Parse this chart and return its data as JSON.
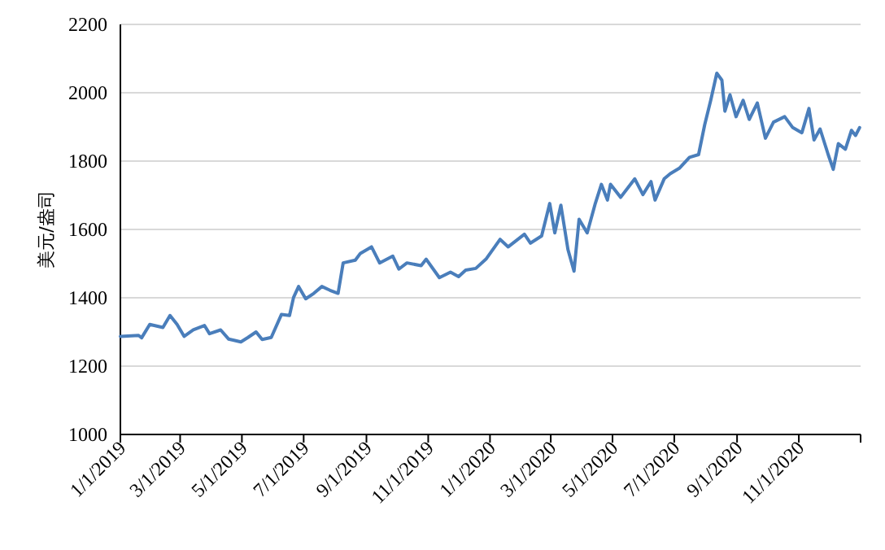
{
  "chart_data": {
    "type": "line",
    "ylabel": "美元/盎司",
    "xlim": [
      "2019-01-01",
      "2021-01-01"
    ],
    "ylim": [
      1000,
      2200
    ],
    "yticks": [
      1000,
      1200,
      1400,
      1600,
      1800,
      2000,
      2200
    ],
    "xticks": [
      {
        "value": "2019-01-01",
        "label": "1/1/2019"
      },
      {
        "value": "2019-03-01",
        "label": "3/1/2019"
      },
      {
        "value": "2019-05-01",
        "label": "5/1/2019"
      },
      {
        "value": "2019-07-01",
        "label": "7/1/2019"
      },
      {
        "value": "2019-09-01",
        "label": "9/1/2019"
      },
      {
        "value": "2019-11-01",
        "label": "11/1/2019"
      },
      {
        "value": "2020-01-01",
        "label": "1/1/2020"
      },
      {
        "value": "2020-03-01",
        "label": "3/1/2020"
      },
      {
        "value": "2020-05-01",
        "label": "5/1/2020"
      },
      {
        "value": "2020-07-01",
        "label": "7/1/2020"
      },
      {
        "value": "2020-09-01",
        "label": "9/1/2020"
      },
      {
        "value": "2020-11-01",
        "label": "11/1/2020"
      },
      {
        "value": "2021-01-01",
        "label": null
      }
    ],
    "grid": "y",
    "marker": "none",
    "line_style": "solid",
    "series": [
      {
        "color": "#4a7ebb",
        "x": [
          "2019-01-01",
          "2019-01-19",
          "2019-01-22",
          "2019-01-30",
          "2019-02-12",
          "2019-02-19",
          "2019-02-26",
          "2019-03-05",
          "2019-03-14",
          "2019-03-25",
          "2019-03-30",
          "2019-04-10",
          "2019-04-18",
          "2019-04-30",
          "2019-05-07",
          "2019-05-15",
          "2019-05-21",
          "2019-05-30",
          "2019-06-09",
          "2019-06-17",
          "2019-06-21",
          "2019-06-26",
          "2019-07-03",
          "2019-07-11",
          "2019-07-19",
          "2019-07-27",
          "2019-08-04",
          "2019-08-09",
          "2019-08-21",
          "2019-08-26",
          "2019-09-06",
          "2019-09-14",
          "2019-09-27",
          "2019-10-03",
          "2019-10-11",
          "2019-10-25",
          "2019-10-30",
          "2019-11-12",
          "2019-11-23",
          "2019-12-01",
          "2019-12-08",
          "2019-12-18",
          "2019-12-28",
          "2020-01-11",
          "2020-01-19",
          "2020-02-04",
          "2020-02-10",
          "2020-02-21",
          "2020-02-29",
          "2020-03-05",
          "2020-03-11",
          "2020-03-18",
          "2020-03-24",
          "2020-03-29",
          "2020-04-06",
          "2020-04-14",
          "2020-04-20",
          "2020-04-26",
          "2020-04-29",
          "2020-05-09",
          "2020-05-23",
          "2020-05-31",
          "2020-06-08",
          "2020-06-12",
          "2020-06-21",
          "2020-06-27",
          "2020-07-06",
          "2020-07-16",
          "2020-07-25",
          "2020-07-31",
          "2020-08-06",
          "2020-08-12",
          "2020-08-17",
          "2020-08-20",
          "2020-08-25",
          "2020-08-31",
          "2020-09-07",
          "2020-09-13",
          "2020-09-21",
          "2020-09-29",
          "2020-10-07",
          "2020-10-18",
          "2020-10-26",
          "2020-11-04",
          "2020-11-11",
          "2020-11-16",
          "2020-11-22",
          "2020-11-30",
          "2020-12-05",
          "2020-12-10",
          "2020-12-17",
          "2020-12-23",
          "2020-12-27",
          "2020-12-31"
        ],
        "values": [
          1287,
          1290,
          1283,
          1322,
          1313,
          1348,
          1322,
          1287,
          1306,
          1319,
          1295,
          1306,
          1279,
          1271,
          1284,
          1300,
          1278,
          1284,
          1351,
          1348,
          1401,
          1433,
          1397,
          1413,
          1433,
          1422,
          1413,
          1502,
          1510,
          1530,
          1549,
          1502,
          1522,
          1484,
          1502,
          1494,
          1513,
          1459,
          1475,
          1462,
          1481,
          1486,
          1513,
          1571,
          1549,
          1586,
          1560,
          1581,
          1676,
          1590,
          1671,
          1541,
          1478,
          1630,
          1590,
          1676,
          1732,
          1686,
          1732,
          1694,
          1748,
          1702,
          1740,
          1686,
          1748,
          1763,
          1779,
          1811,
          1819,
          1906,
          1978,
          2057,
          2037,
          1946,
          1994,
          1930,
          1978,
          1922,
          1970,
          1867,
          1914,
          1930,
          1898,
          1883,
          1954,
          1862,
          1894,
          1819,
          1776,
          1851,
          1835,
          1890,
          1875,
          1898
        ]
      }
    ]
  }
}
